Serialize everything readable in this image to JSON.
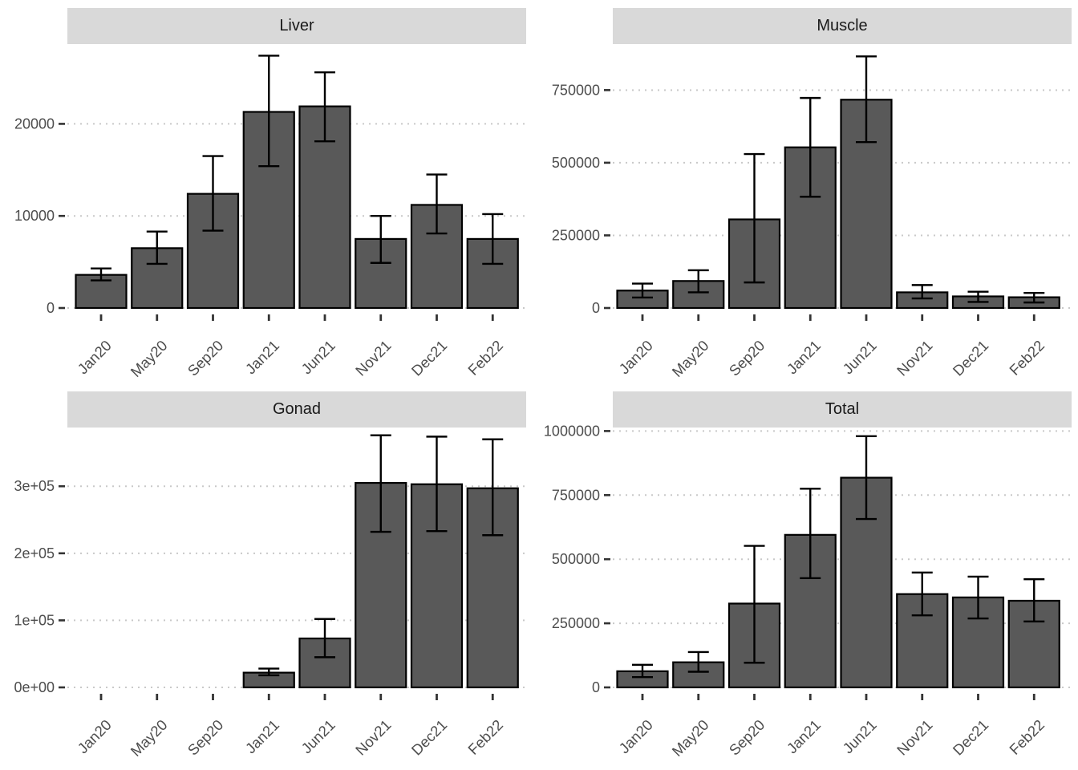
{
  "chart_data": [
    {
      "type": "bar",
      "title": "Liver",
      "categories": [
        "Jan20",
        "May20",
        "Sep20",
        "Jan21",
        "Jun21",
        "Nov21",
        "Dec21",
        "Feb22"
      ],
      "values": [
        3600,
        6500,
        12400,
        21300,
        21900,
        7500,
        11200,
        7500
      ],
      "error_low": [
        3000,
        4800,
        8400,
        15400,
        18100,
        4900,
        8100,
        4800
      ],
      "error_high": [
        4300,
        8300,
        16500,
        27400,
        25600,
        10000,
        14500,
        10200
      ],
      "ytick_values": [
        0,
        10000,
        20000
      ],
      "ytick_labels": [
        "0",
        "10000",
        "20000"
      ],
      "ylim": [
        0,
        28400
      ],
      "xlabel": "",
      "ylabel": "",
      "grid": "horizontal-dotted",
      "legend": "none"
    },
    {
      "type": "bar",
      "title": "Muscle",
      "categories": [
        "Jan20",
        "May20",
        "Sep20",
        "Jan21",
        "Jun21",
        "Nov21",
        "Dec21",
        "Feb22"
      ],
      "values": [
        60000,
        93000,
        305000,
        553000,
        717000,
        54000,
        40000,
        37000
      ],
      "error_low": [
        36000,
        54000,
        88000,
        383000,
        571000,
        33000,
        21000,
        19000
      ],
      "error_high": [
        84000,
        130000,
        530000,
        723000,
        866000,
        79000,
        56000,
        52000
      ],
      "ytick_values": [
        0,
        250000,
        500000,
        750000
      ],
      "ytick_labels": [
        "0",
        "250000",
        "500000",
        "750000"
      ],
      "ylim": [
        0,
        900000
      ],
      "xlabel": "",
      "ylabel": "",
      "grid": "horizontal-dotted",
      "legend": "none"
    },
    {
      "type": "bar",
      "title": "Gonad",
      "categories": [
        "Jan20",
        "May20",
        "Sep20",
        "Jan21",
        "Jun21",
        "Nov21",
        "Dec21",
        "Feb22"
      ],
      "values": [
        0,
        0,
        0,
        22000,
        73000,
        305000,
        303000,
        297000
      ],
      "error_low": [
        null,
        null,
        null,
        18000,
        45000,
        232000,
        233000,
        227000
      ],
      "error_high": [
        null,
        null,
        null,
        28000,
        102000,
        376000,
        374000,
        370000
      ],
      "ytick_values": [
        0,
        100000,
        200000,
        300000
      ],
      "ytick_labels": [
        "0e+00",
        "1e+05",
        "2e+05",
        "3e+05"
      ],
      "ylim": [
        0,
        390000
      ],
      "xlabel": "",
      "ylabel": "",
      "grid": "horizontal-dotted",
      "legend": "none"
    },
    {
      "type": "bar",
      "title": "Total",
      "categories": [
        "Jan20",
        "May20",
        "Sep20",
        "Jan21",
        "Jun21",
        "Nov21",
        "Dec21",
        "Feb22"
      ],
      "values": [
        63000,
        98000,
        327000,
        595000,
        818000,
        364000,
        351000,
        338000
      ],
      "error_low": [
        40000,
        61000,
        96000,
        426000,
        657000,
        281000,
        269000,
        257000
      ],
      "error_high": [
        88000,
        138000,
        552000,
        775000,
        980000,
        448000,
        432000,
        422000
      ],
      "ytick_values": [
        0,
        250000,
        500000,
        750000,
        1000000
      ],
      "ytick_labels": [
        "0",
        "250000",
        "500000",
        "750000",
        "1000000"
      ],
      "ylim": [
        0,
        1020000
      ],
      "xlabel": "",
      "ylabel": "",
      "grid": "horizontal-dotted",
      "legend": "none"
    }
  ],
  "style": {
    "bar_fill": "#595959",
    "bar_stroke": "#000000",
    "errorbar_color": "#000000",
    "strip_background": "#d9d9d9",
    "strip_text_color": "#1a1a1a",
    "axis_text_color": "#4d4d4d",
    "tick_mark_color": "#333333",
    "gridline_color": "#c9c9c9",
    "background": "#ffffff"
  }
}
